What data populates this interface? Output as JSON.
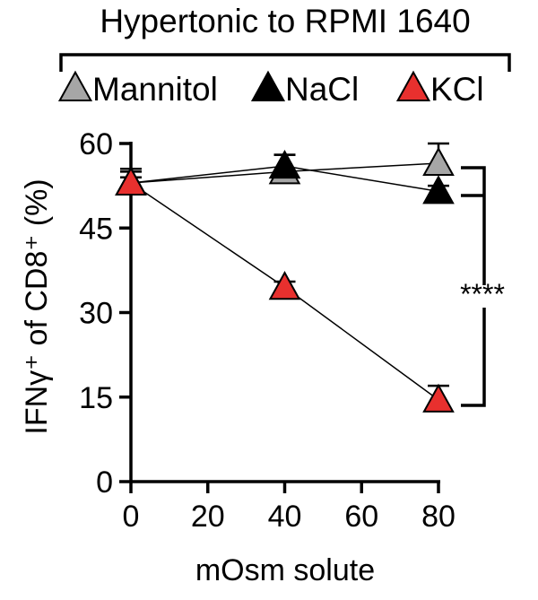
{
  "chart_data": {
    "type": "line",
    "title": "Hypertonic to RPMI 1640",
    "xlabel": "mOsm solute",
    "ylabel": "IFNγ⁺ of CD8⁺ (%)",
    "xlim": [
      0,
      80
    ],
    "ylim": [
      0,
      60
    ],
    "xticks": [
      0,
      20,
      40,
      60,
      80
    ],
    "yticks": [
      0,
      15,
      30,
      45,
      60
    ],
    "grid": false,
    "legend_position": "top",
    "significance_label": "****",
    "series": [
      {
        "name": "Mannitol",
        "color": "#a6a6a6",
        "marker": "triangle",
        "x": [
          0,
          40,
          80
        ],
        "y": [
          53,
          55,
          56.5
        ],
        "err": [
          2.5,
          3,
          3.5
        ]
      },
      {
        "name": "NaCl",
        "color": "#000000",
        "marker": "triangle",
        "x": [
          0,
          40,
          80
        ],
        "y": [
          53,
          56,
          51.5
        ],
        "err": [
          2,
          2,
          1
        ]
      },
      {
        "name": "KCl",
        "color": "#e8302e",
        "marker": "triangle",
        "x": [
          0,
          40,
          80
        ],
        "y": [
          53,
          34.5,
          14.5
        ],
        "err": [
          1,
          1,
          2.5
        ]
      }
    ]
  }
}
